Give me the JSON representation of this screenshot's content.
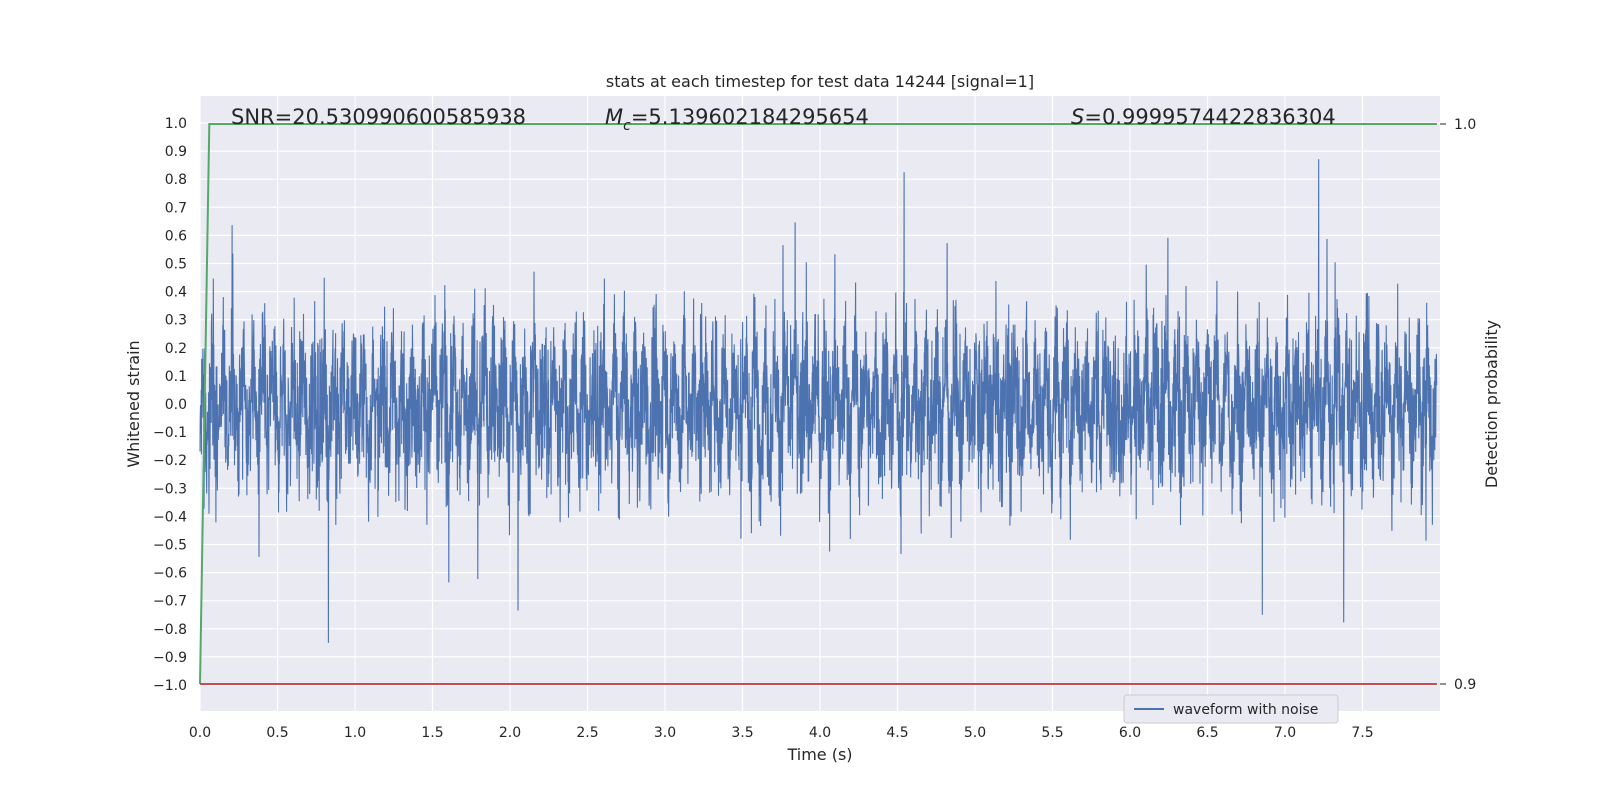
{
  "chart_data": {
    "type": "line",
    "title": "stats at each timestep for test data 14244 [signal=1]",
    "xlabel": "Time (s)",
    "ylabel": "Whitened strain",
    "y2label": "Detection probability",
    "xlim": [
      0.0,
      8.0
    ],
    "ylim": [
      -1.08,
      1.1
    ],
    "y2lim": [
      0.9,
      1.0
    ],
    "xticks": [
      "0.0",
      "0.5",
      "1.0",
      "1.5",
      "2.0",
      "2.5",
      "3.0",
      "3.5",
      "4.0",
      "4.5",
      "5.0",
      "5.5",
      "6.0",
      "6.5",
      "7.0",
      "7.5"
    ],
    "yticks": [
      "1.0",
      "0.9",
      "0.8",
      "0.7",
      "0.6",
      "0.5",
      "0.4",
      "0.3",
      "0.2",
      "0.1",
      "0.0",
      "−0.1",
      "−0.2",
      "−0.3",
      "−0.4",
      "−0.5",
      "−0.6",
      "−0.7",
      "−0.8",
      "−0.9",
      "−1.0"
    ],
    "y2ticks": [
      "1.0",
      "0.9"
    ],
    "grid": true,
    "legend": {
      "position": "lower-right",
      "entries": [
        "waveform with noise"
      ]
    },
    "annotations": {
      "snr": "SNR=20.530990600585938",
      "mc_prefix": "M",
      "mc_sub": "c",
      "mc_value": "=5.139602184295654",
      "s_prefix": "S",
      "s_value": "=0.9999574422836304"
    },
    "series": [
      {
        "name": "waveform with noise",
        "axis": "left",
        "color": "#4c72b0",
        "note": "dense noisy strain signal spanning approx -0.99 to 0.94 across 0-8 s",
        "envelope": {
          "max": 0.94,
          "min": -0.99,
          "typical": 0.5
        }
      },
      {
        "axis": "right",
        "color": "#55a868",
        "x": [
          0.0,
          0.06,
          7.98
        ],
        "y": [
          0.9,
          1.0,
          1.0
        ]
      },
      {
        "axis": "right",
        "color": "#c44e52",
        "x": [
          0.0,
          7.98
        ],
        "y": [
          0.9,
          0.9
        ]
      }
    ]
  }
}
